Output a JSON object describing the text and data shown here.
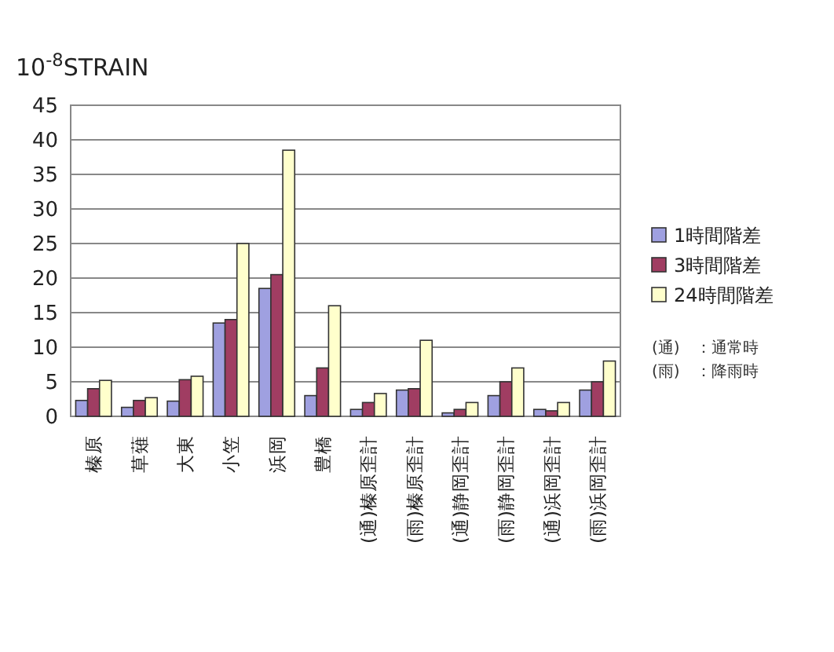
{
  "chart_data": {
    "type": "bar",
    "ylabel": "10$^{-8}$STRAIN",
    "categories": [
      "榛原",
      "草薙",
      "大東",
      "小笠",
      "浜岡",
      "豊橋",
      "(通)榛原歪計",
      "(雨)榛原歪計",
      "(通)静岡歪計",
      "(雨)静岡歪計",
      "(通)浜岡歪計",
      "(雨)浜岡歪計"
    ],
    "series": [
      {
        "name": "1時間階差",
        "color": "#9fa0e0",
        "values": [
          2.3,
          1.3,
          2.2,
          13.5,
          18.5,
          3,
          1,
          3.8,
          0.5,
          3,
          1,
          3.8
        ]
      },
      {
        "name": "3時間階差",
        "color": "#a03d62",
        "values": [
          4,
          2.3,
          5.3,
          14,
          20.5,
          7,
          2,
          4,
          1,
          5,
          0.8,
          5
        ]
      },
      {
        "name": "24時間階差",
        "color": "#ffffcc",
        "values": [
          5.2,
          2.7,
          5.8,
          25,
          38.5,
          16,
          3.3,
          11,
          2,
          7,
          2,
          8
        ]
      }
    ],
    "ylim": [
      0,
      45
    ],
    "yticks": [
      0,
      5,
      10,
      15,
      20,
      25,
      30,
      35,
      40,
      45
    ],
    "grid": "y",
    "legend": "right",
    "annotations": [
      "(通)　：通常時",
      "(雨)　：降雨時"
    ]
  }
}
